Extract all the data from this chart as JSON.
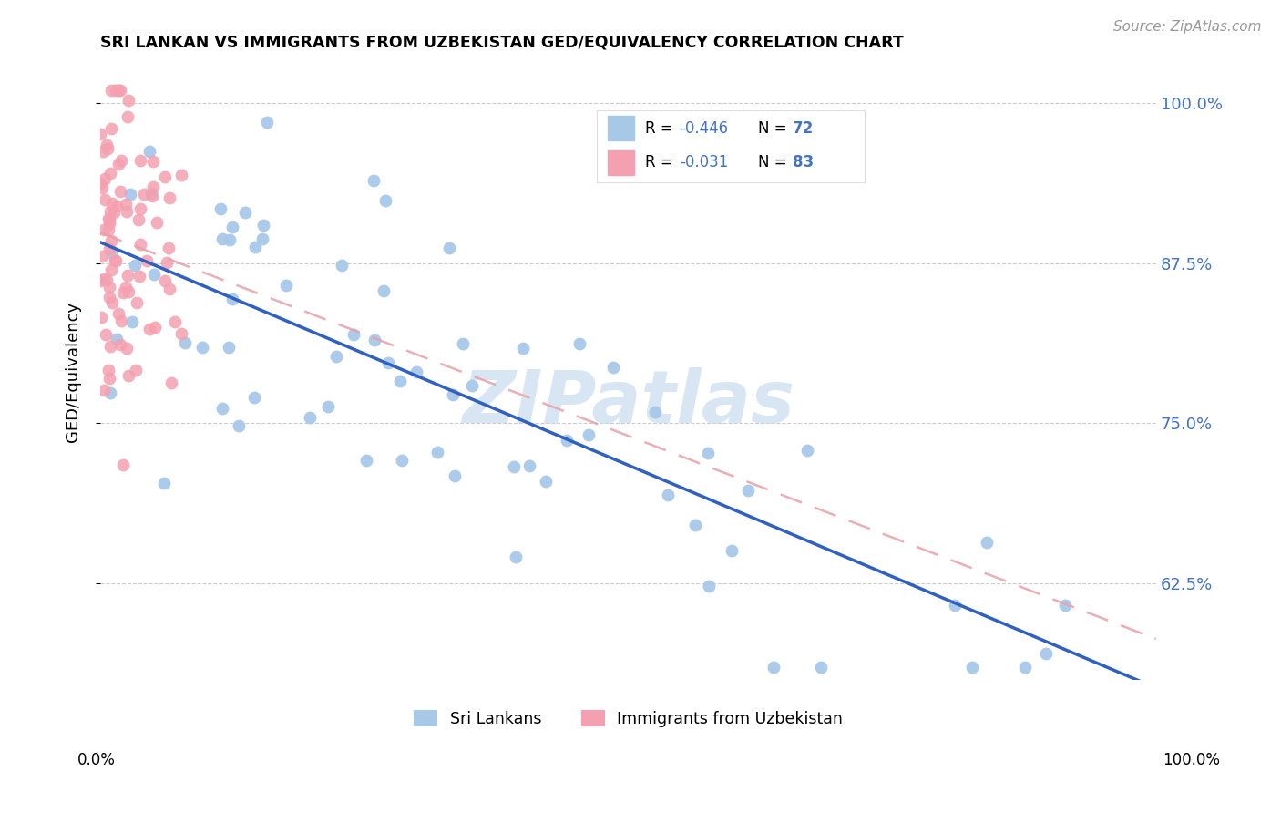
{
  "title": "SRI LANKAN VS IMMIGRANTS FROM UZBEKISTAN GED/EQUIVALENCY CORRELATION CHART",
  "source": "Source: ZipAtlas.com",
  "ylabel": "GED/Equivalency",
  "y_ticks": [
    0.625,
    0.75,
    0.875,
    1.0
  ],
  "y_tick_labels": [
    "62.5%",
    "75.0%",
    "87.5%",
    "100.0%"
  ],
  "legend_label1": "Sri Lankans",
  "legend_label2": "Immigrants from Uzbekistan",
  "color_blue": "#A8C8E8",
  "color_pink": "#F4A0B0",
  "color_blue_line": "#3060C0",
  "color_pink_line": "#E8A0A8",
  "color_blue_text": "#4472C4",
  "watermark_color": "#C8DCF0",
  "xlim": [
    0.0,
    1.0
  ],
  "ylim": [
    0.55,
    1.03
  ]
}
